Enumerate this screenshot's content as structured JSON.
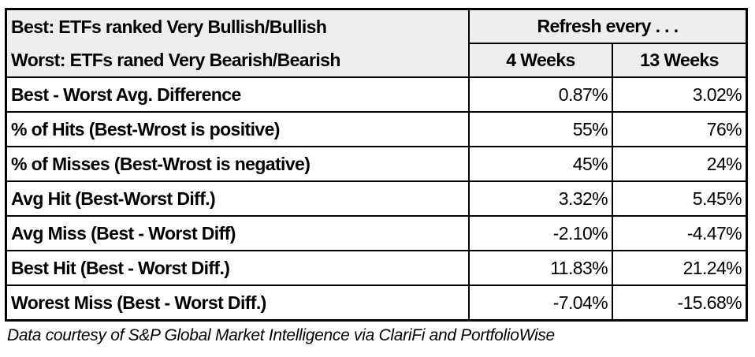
{
  "header": {
    "best_label": "Best: ETFs ranked Very Bullish/Bullish",
    "worst_label": "Worst: ETFs raned Very Bearish/Bearish",
    "group_label": "Refresh every . . .",
    "columns": [
      "4 Weeks",
      "13 Weeks"
    ]
  },
  "rows": [
    {
      "label": "Best - Worst Avg. Difference",
      "values": [
        "0.87%",
        "3.02%"
      ]
    },
    {
      "label": "% of Hits (Best-Wrost is positive)",
      "values": [
        "55%",
        "76%"
      ]
    },
    {
      "label": "% of Misses (Best-Wrost is negative)",
      "values": [
        "45%",
        "24%"
      ]
    },
    {
      "label": "Avg Hit (Best-Worst Diff.)",
      "values": [
        "3.32%",
        "5.45%"
      ]
    },
    {
      "label": "Avg Miss (Best - Worst Diff)",
      "values": [
        "-2.10%",
        "-4.47%"
      ]
    },
    {
      "label": "Best Hit (Best - Worst Diff.)",
      "values": [
        "11.83%",
        "21.24%"
      ]
    },
    {
      "label": "Worest Miss (Best - Worst Diff.)",
      "values": [
        "-7.04%",
        "-15.68%"
      ]
    }
  ],
  "caption": "Data courtesy of S&P Global Market Intelligence via ClariFi and PortfolioWise",
  "colors": {
    "header_bg": "#eeeeee",
    "border": "#000000"
  }
}
